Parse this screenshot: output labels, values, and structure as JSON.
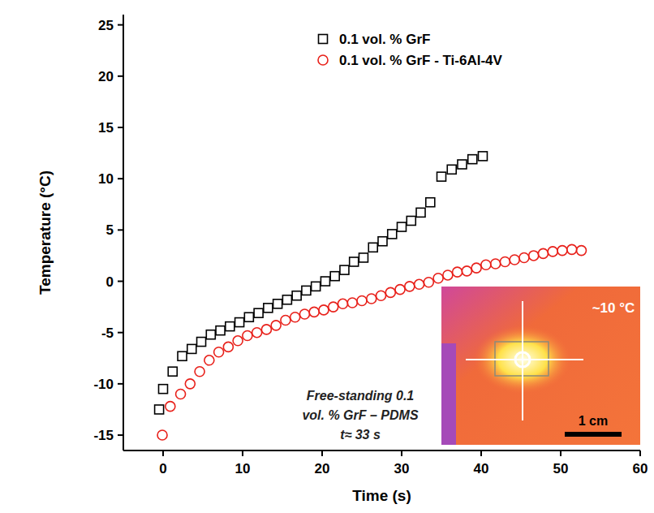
{
  "chart_data": {
    "type": "scatter",
    "x_label": "Time (s)",
    "y_label": "Temperature (°C)",
    "xlim": [
      -5,
      60
    ],
    "xticks": [
      0,
      10,
      20,
      30,
      40,
      50,
      60
    ],
    "ylim": [
      -16.5,
      26
    ],
    "yticks": [
      -15,
      -10,
      -5,
      0,
      5,
      10,
      15,
      20,
      25
    ],
    "grid": false,
    "legend": "top-right",
    "series": [
      {
        "name": "0.1 vol. % GrF",
        "color": "#000000",
        "marker": "square",
        "x": [
          -0.5,
          0,
          1.2,
          2.4,
          3.6,
          4.8,
          6.0,
          7.2,
          8.4,
          9.6,
          10.8,
          12.0,
          13.2,
          14.4,
          15.6,
          16.8,
          18.0,
          19.2,
          20.4,
          21.6,
          22.8,
          24.0,
          25.2,
          26.4,
          27.6,
          28.8,
          30.0,
          31.2,
          32.4,
          33.6,
          35.0,
          36.3,
          37.6,
          38.9,
          40.2
        ],
        "values": [
          -12.5,
          -10.5,
          -8.8,
          -7.3,
          -6.6,
          -5.9,
          -5.2,
          -4.8,
          -4.4,
          -4.0,
          -3.5,
          -3.1,
          -2.6,
          -2.2,
          -1.8,
          -1.4,
          -0.9,
          -0.5,
          0.0,
          0.5,
          1.1,
          1.9,
          2.3,
          3.3,
          3.9,
          4.6,
          5.3,
          5.9,
          6.7,
          7.7,
          10.2,
          10.9,
          11.4,
          11.9,
          12.2
        ]
      },
      {
        "name": "0.1 vol. % GrF - Ti-6Al-4V",
        "color": "#e8201a",
        "marker": "circle",
        "x": [
          -0.1,
          0.9,
          2.2,
          3.4,
          4.6,
          5.8,
          7.0,
          8.2,
          9.4,
          10.6,
          11.8,
          13.0,
          14.2,
          15.4,
          16.6,
          17.8,
          19.0,
          20.2,
          21.4,
          22.6,
          23.8,
          25.0,
          26.2,
          27.4,
          28.6,
          29.8,
          31.0,
          32.2,
          33.4,
          34.6,
          35.8,
          37.0,
          38.2,
          39.4,
          40.6,
          41.8,
          43.0,
          44.2,
          45.4,
          46.6,
          47.8,
          49.0,
          50.2,
          51.4,
          52.6
        ],
        "values": [
          -15.0,
          -12.2,
          -11.0,
          -10.0,
          -8.8,
          -7.7,
          -6.9,
          -6.4,
          -5.8,
          -5.3,
          -5.0,
          -4.7,
          -4.3,
          -3.8,
          -3.5,
          -3.2,
          -3.0,
          -2.8,
          -2.5,
          -2.2,
          -2.1,
          -1.9,
          -1.7,
          -1.4,
          -1.1,
          -0.8,
          -0.5,
          -0.3,
          -0.1,
          0.3,
          0.6,
          0.9,
          1.0,
          1.3,
          1.6,
          1.7,
          1.9,
          2.1,
          2.3,
          2.5,
          2.7,
          2.9,
          3.0,
          3.1,
          3.0
        ]
      }
    ],
    "annotations": {
      "caption": [
        "Free-standing 0.1",
        "vol. % GrF – PDMS",
        "t≈ 33 s"
      ],
      "temperature": "~10 °C",
      "scale_bar": "1 cm"
    }
  }
}
